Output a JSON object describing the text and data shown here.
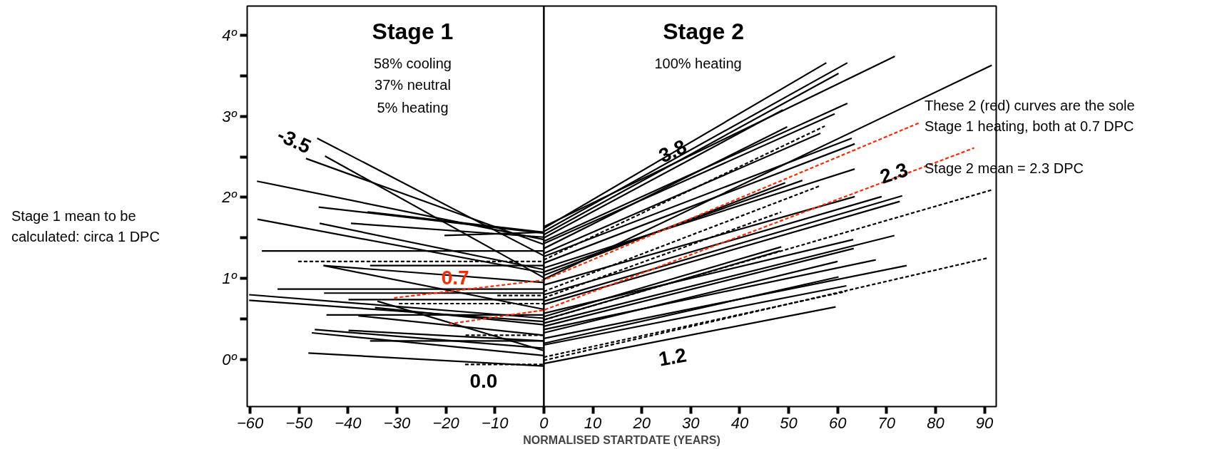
{
  "chart_data": {
    "type": "line",
    "xlabel": "NORMALISED STARTDATE (YEARS)",
    "xlim": [
      -60.6,
      92.4
    ],
    "ylim": [
      -0.58,
      4.36
    ],
    "xticks": [
      -60,
      -50,
      -40,
      -30,
      -20,
      -10,
      0,
      10,
      20,
      30,
      40,
      50,
      60,
      70,
      80,
      90
    ],
    "yticks": [
      {
        "value": 0,
        "label": "0º"
      },
      {
        "value": 0.5,
        "label": null
      },
      {
        "value": 1,
        "label": "1º"
      },
      {
        "value": 1.5,
        "label": null
      },
      {
        "value": 2,
        "label": "2º"
      },
      {
        "value": 2.5,
        "label": null
      },
      {
        "value": 3,
        "label": "3º"
      },
      {
        "value": 3.5,
        "label": null
      },
      {
        "value": 4,
        "label": "4º"
      }
    ],
    "marker": "none",
    "line_style": "solid",
    "ref_lines": [
      {
        "axis": "x",
        "value": 0,
        "label": null,
        "color": "#000000"
      }
    ],
    "annotations": [
      "Stage 1",
      "58% cooling",
      "37% neutral",
      "5% heating",
      "Stage 2",
      "100% heating",
      "These 2 (red) curves are the sole",
      "Stage 1 heating, both at 0.7 DPC",
      "Stage 2 mean = 2.3 DPC",
      "Stage 1 mean to be",
      "calculated: circa 1 DPC",
      "-3.5",
      "3.8",
      "2.3",
      "1.2",
      "0.0",
      "0.7"
    ],
    "series": [
      {
        "color": "#000000",
        "x": [
          -46.3,
          0
        ],
        "values": [
          2.73,
          1.28
        ]
      },
      {
        "color": "#000000",
        "x": [
          -44.7,
          0
        ],
        "values": [
          2.51,
          1.01
        ]
      },
      {
        "color": "#000000",
        "x": [
          -48.6,
          0
        ],
        "values": [
          2.48,
          1.42
        ]
      },
      {
        "color": "#000000",
        "x": [
          -58.6,
          0
        ],
        "values": [
          2.2,
          1.48
        ]
      },
      {
        "color": "#000000",
        "x": [
          -46,
          0
        ],
        "values": [
          1.88,
          1.56
        ]
      },
      {
        "color": "#000000",
        "x": [
          -36,
          0
        ],
        "values": [
          1.82,
          1.57
        ]
      },
      {
        "color": "#000000",
        "x": [
          -39.4,
          0
        ],
        "values": [
          1.68,
          1.51
        ]
      },
      {
        "color": "#000000",
        "x": [
          -20.3,
          0
        ],
        "values": [
          1.53,
          1.57
        ]
      },
      {
        "color": "#000000",
        "x": [
          -58.5,
          0
        ],
        "values": [
          1.73,
          1.07
        ]
      },
      {
        "color": "#000000",
        "x": [
          -45.8,
          0
        ],
        "values": [
          1.68,
          1.11
        ]
      },
      {
        "color": "#000000",
        "x": [
          -57.6,
          0
        ],
        "values": [
          1.34,
          1.34
        ]
      },
      {
        "color": "#000000",
        "x": [
          -50.2,
          0
        ],
        "values": [
          1.21,
          1.21
        ],
        "line_style": "dashed"
      },
      {
        "color": "#000000",
        "x": [
          -35.5,
          0
        ],
        "values": [
          1.16,
          1.16
        ]
      },
      {
        "color": "#000000",
        "x": [
          -45,
          0
        ],
        "values": [
          1.16,
          0.95
        ]
      },
      {
        "color": "#000000",
        "x": [
          -45,
          0
        ],
        "values": [
          1.16,
          0.62
        ]
      },
      {
        "color": "#000000",
        "x": [
          -54.4,
          0
        ],
        "values": [
          0.87,
          0.87
        ]
      },
      {
        "color": "#000000",
        "x": [
          -44.9,
          0
        ],
        "values": [
          0.82,
          0.82
        ]
      },
      {
        "color": "#000000",
        "x": [
          -39.9,
          0
        ],
        "values": [
          0.74,
          0.74
        ]
      },
      {
        "color": "#000000",
        "x": [
          -9.5,
          0
        ],
        "values": [
          0.79,
          0.79
        ],
        "line_style": "dashed"
      },
      {
        "color": "#000000",
        "x": [
          -29.6,
          0
        ],
        "values": [
          0.69,
          0.69
        ],
        "line_style": "dashed"
      },
      {
        "color": "#000000",
        "x": [
          -60.2,
          0
        ],
        "values": [
          0.8,
          0.51
        ]
      },
      {
        "color": "#000000",
        "x": [
          -60.2,
          0
        ],
        "values": [
          0.73,
          0.47
        ]
      },
      {
        "color": "#000000",
        "x": [
          -44.4,
          0
        ],
        "values": [
          0.55,
          0.55
        ]
      },
      {
        "color": "#000000",
        "x": [
          -37.9,
          0
        ],
        "values": [
          0.54,
          0.3
        ]
      },
      {
        "color": "#000000",
        "x": [
          -34,
          0
        ],
        "values": [
          0.72,
          0.11
        ]
      },
      {
        "color": "#000000",
        "x": [
          -34.5,
          0
        ],
        "values": [
          0.64,
          0.43
        ]
      },
      {
        "color": "#000000",
        "x": [
          -16,
          0
        ],
        "values": [
          0.3,
          0.3
        ],
        "line_style": "dashed"
      },
      {
        "color": "#000000",
        "x": [
          -46.8,
          0
        ],
        "values": [
          0.37,
          0.14
        ]
      },
      {
        "color": "#000000",
        "x": [
          -47.4,
          0
        ],
        "values": [
          0.33,
          0.05
        ]
      },
      {
        "color": "#000000",
        "x": [
          -39.9,
          0
        ],
        "values": [
          0.36,
          0.23
        ]
      },
      {
        "color": "#000000",
        "x": [
          -35.5,
          0
        ],
        "values": [
          0.23,
          0.23
        ]
      },
      {
        "color": "#000000",
        "x": [
          -48.1,
          0
        ],
        "values": [
          0.08,
          -0.08
        ]
      },
      {
        "color": "#000000",
        "x": [
          -16.1,
          0
        ],
        "values": [
          -0.06,
          -0.06
        ],
        "line_style": "dashed"
      },
      {
        "color": "#000000",
        "x": [
          0,
          57.7
        ],
        "values": [
          1.62,
          3.66
        ]
      },
      {
        "color": "#000000",
        "x": [
          0,
          62.0
        ],
        "values": [
          1.58,
          3.66
        ]
      },
      {
        "color": "#000000",
        "x": [
          0,
          60.2
        ],
        "values": [
          1.54,
          3.53
        ]
      },
      {
        "color": "#000000",
        "x": [
          0,
          71.7
        ],
        "values": [
          1.64,
          3.74
        ]
      },
      {
        "color": "#000000",
        "x": [
          0,
          91.5
        ],
        "values": [
          0.99,
          3.63
        ]
      },
      {
        "color": "#000000",
        "x": [
          0,
          48.8
        ],
        "values": [
          1.5,
          3.08
        ]
      },
      {
        "color": "#000000",
        "x": [
          0,
          62.0
        ],
        "values": [
          1.46,
          3.16
        ]
      },
      {
        "color": "#000000",
        "x": [
          0,
          59.4
        ],
        "values": [
          1.43,
          3.03
        ]
      },
      {
        "color": "#000000",
        "x": [
          0,
          49.7
        ],
        "values": [
          1.37,
          2.87
        ]
      },
      {
        "color": "#000000",
        "x": [
          0,
          57.4
        ],
        "values": [
          1.23,
          2.88
        ],
        "line_style": "dashed"
      },
      {
        "color": "#000000",
        "x": [
          0,
          56.5
        ],
        "values": [
          1.31,
          2.79
        ]
      },
      {
        "color": "#000000",
        "x": [
          0,
          62.9
        ],
        "values": [
          1.27,
          2.73
        ]
      },
      {
        "color": "#000000",
        "x": [
          0,
          63.5
        ],
        "values": [
          1.19,
          2.66
        ]
      },
      {
        "color": "#000000",
        "x": [
          0,
          52.8
        ],
        "values": [
          1.08,
          2.21
        ]
      },
      {
        "color": "#000000",
        "x": [
          0,
          49.3
        ],
        "values": [
          1.04,
          2.18
        ]
      },
      {
        "color": "#000000",
        "x": [
          0,
          56.3
        ],
        "values": [
          0.84,
          2.14
        ],
        "line_style": "dashed"
      },
      {
        "color": "#000000",
        "x": [
          0,
          63.5
        ],
        "values": [
          1.13,
          2.35
        ]
      },
      {
        "color": "#000000",
        "x": [
          0,
          63.5
        ],
        "values": [
          0.92,
          2.01
        ]
      },
      {
        "color": "#000000",
        "x": [
          0,
          69.0
        ],
        "values": [
          0.8,
          2.01
        ]
      },
      {
        "color": "#000000",
        "x": [
          0,
          73.2
        ],
        "values": [
          0.72,
          2.02
        ]
      },
      {
        "color": "#000000",
        "x": [
          0,
          72.7
        ],
        "values": [
          0.68,
          1.95
        ]
      },
      {
        "color": "#000000",
        "x": [
          0,
          91.4
        ],
        "values": [
          0.49,
          2.09
        ],
        "line_style": "dashed"
      },
      {
        "color": "#000000",
        "x": [
          0,
          48.5
        ],
        "values": [
          0.76,
          1.82
        ],
        "line_style": "dashed"
      },
      {
        "color": "#000000",
        "x": [
          0,
          48.5
        ],
        "values": [
          0.53,
          1.39
        ]
      },
      {
        "color": "#000000",
        "x": [
          0,
          48.2
        ],
        "values": [
          0.49,
          1.34
        ]
      },
      {
        "color": "#000000",
        "x": [
          0,
          63.2
        ],
        "values": [
          0.57,
          1.48
        ]
      },
      {
        "color": "#000000",
        "x": [
          0,
          71.6
        ],
        "values": [
          0.45,
          1.53
        ]
      },
      {
        "color": "#000000",
        "x": [
          0,
          63.3
        ],
        "values": [
          0.41,
          1.37
        ]
      },
      {
        "color": "#000000",
        "x": [
          0,
          60.0
        ],
        "values": [
          0.33,
          1.21
        ]
      },
      {
        "color": "#000000",
        "x": [
          0,
          67.8
        ],
        "values": [
          0.37,
          1.23
        ]
      },
      {
        "color": "#000000",
        "x": [
          0,
          74.1
        ],
        "values": [
          0.26,
          1.16
        ]
      },
      {
        "color": "#000000",
        "x": [
          0,
          60.2
        ],
        "values": [
          0.2,
          1.02
        ]
      },
      {
        "color": "#000000",
        "x": [
          0,
          61.8
        ],
        "values": [
          0.18,
          0.91
        ]
      },
      {
        "color": "#000000",
        "x": [
          0,
          90.5
        ],
        "values": [
          -0.01,
          1.25
        ],
        "line_style": "dashed"
      },
      {
        "color": "#000000",
        "x": [
          0,
          59.6
        ],
        "values": [
          -0.05,
          0.65
        ]
      },
      {
        "color": "#000000",
        "x": [
          0,
          61.7
        ],
        "values": [
          0.03,
          0.84
        ],
        "line_style": "dashed"
      },
      {
        "color": "#ff2a00",
        "x": [
          -30.6,
          0,
          76.7
        ],
        "values": [
          0.76,
          0.98,
          2.92
        ],
        "line_style": "dashed"
      },
      {
        "color": "#ff2a00",
        "x": [
          -19.4,
          0,
          87.9
        ],
        "values": [
          0.44,
          0.61,
          2.61
        ],
        "line_style": "dashed"
      }
    ]
  }
}
